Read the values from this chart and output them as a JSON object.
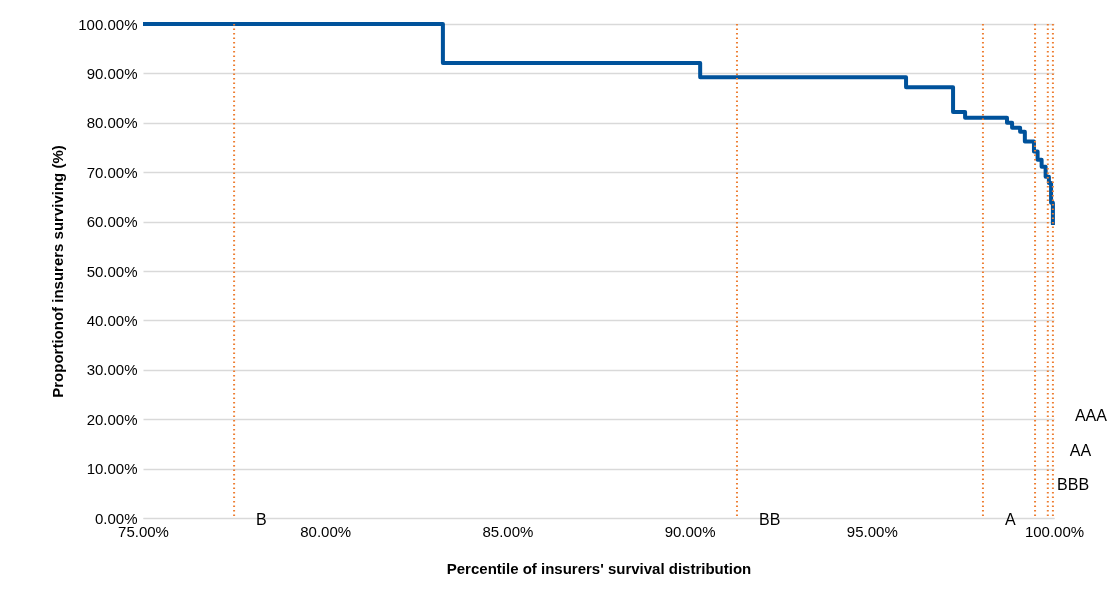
{
  "chart_data": {
    "type": "step",
    "xlabel": "Percentile of insurers' survival distribution",
    "ylabel": "Proportionof insurers surviving (%)",
    "x": [
      75,
      83.23,
      90.29,
      95.94,
      97.23,
      97.56,
      98.71,
      98.85,
      99.07,
      99.2,
      99.45,
      99.55,
      99.66,
      99.77,
      99.86,
      99.92,
      99.97
    ],
    "series": [
      {
        "color": "#00529b",
        "values": [
          100,
          92.1,
          89.2,
          87.2,
          82.2,
          81.0,
          80.0,
          79.0,
          78.2,
          76.2,
          74.2,
          72.5,
          71.1,
          69.1,
          67.8,
          63.8,
          59.3
        ]
      }
    ],
    "xlim": [
      75,
      100
    ],
    "xticks": [
      {
        "value": 75,
        "label": "75.00%"
      },
      {
        "value": 80,
        "label": "80.00%"
      },
      {
        "value": 85,
        "label": "85.00%"
      },
      {
        "value": 90,
        "label": "90.00%"
      },
      {
        "value": 95,
        "label": "95.00%"
      },
      {
        "value": 100,
        "label": "100.00%"
      }
    ],
    "ylim": [
      0,
      100
    ],
    "yticks": [
      {
        "value": 0,
        "label": "0.00%"
      },
      {
        "value": 10,
        "label": "10.00%"
      },
      {
        "value": 20,
        "label": "20.00%"
      },
      {
        "value": 30,
        "label": "30.00%"
      },
      {
        "value": 40,
        "label": "40.00%"
      },
      {
        "value": 50,
        "label": "50.00%"
      },
      {
        "value": 60,
        "label": "60.00%"
      },
      {
        "value": 70,
        "label": "70.00%"
      },
      {
        "value": 80,
        "label": "80.00%"
      },
      {
        "value": 90,
        "label": "90.00%"
      },
      {
        "value": 100,
        "label": "100.00%"
      }
    ],
    "ref_lines": [
      {
        "axis": "x",
        "value": 77.5,
        "label": "B",
        "color": "#ed7d31",
        "line_style": "dotted"
      },
      {
        "axis": "x",
        "value": 91.3,
        "label": "BB",
        "color": "#ed7d31",
        "line_style": "dotted"
      },
      {
        "axis": "x",
        "value": 98.05,
        "label": "A",
        "color": "#ed7d31",
        "line_style": "dotted"
      },
      {
        "axis": "x",
        "value": 99.48,
        "label": "BBB",
        "color": "#ed7d31",
        "line_style": "dotted"
      },
      {
        "axis": "x",
        "value": 99.83,
        "label": "AA",
        "color": "#ed7d31",
        "line_style": "dotted"
      },
      {
        "axis": "x",
        "value": 99.97,
        "label": "AAA",
        "color": "#ed7d31",
        "line_style": "dotted"
      }
    ],
    "grid": "y",
    "line_style": "solid"
  }
}
